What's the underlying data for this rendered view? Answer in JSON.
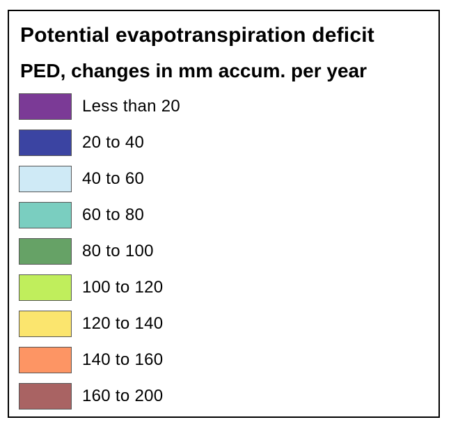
{
  "legend": {
    "title": "Potential evapotranspiration deficit",
    "subtitle": "PED, changes in mm accum. per year",
    "items": [
      {
        "label": "Less than 20",
        "color": "#7b3a96"
      },
      {
        "label": "20 to 40",
        "color": "#3b44a2"
      },
      {
        "label": "40 to 60",
        "color": "#cfeaf6"
      },
      {
        "label": "60 to 80",
        "color": "#7acec0"
      },
      {
        "label": "80 to 100",
        "color": "#66a266"
      },
      {
        "label": "100 to 120",
        "color": "#c0ee5c"
      },
      {
        "label": "120 to 140",
        "color": "#fbe56e"
      },
      {
        "label": "140 to 160",
        "color": "#fd9564"
      },
      {
        "label": "160 to 200",
        "color": "#a96363"
      }
    ]
  }
}
